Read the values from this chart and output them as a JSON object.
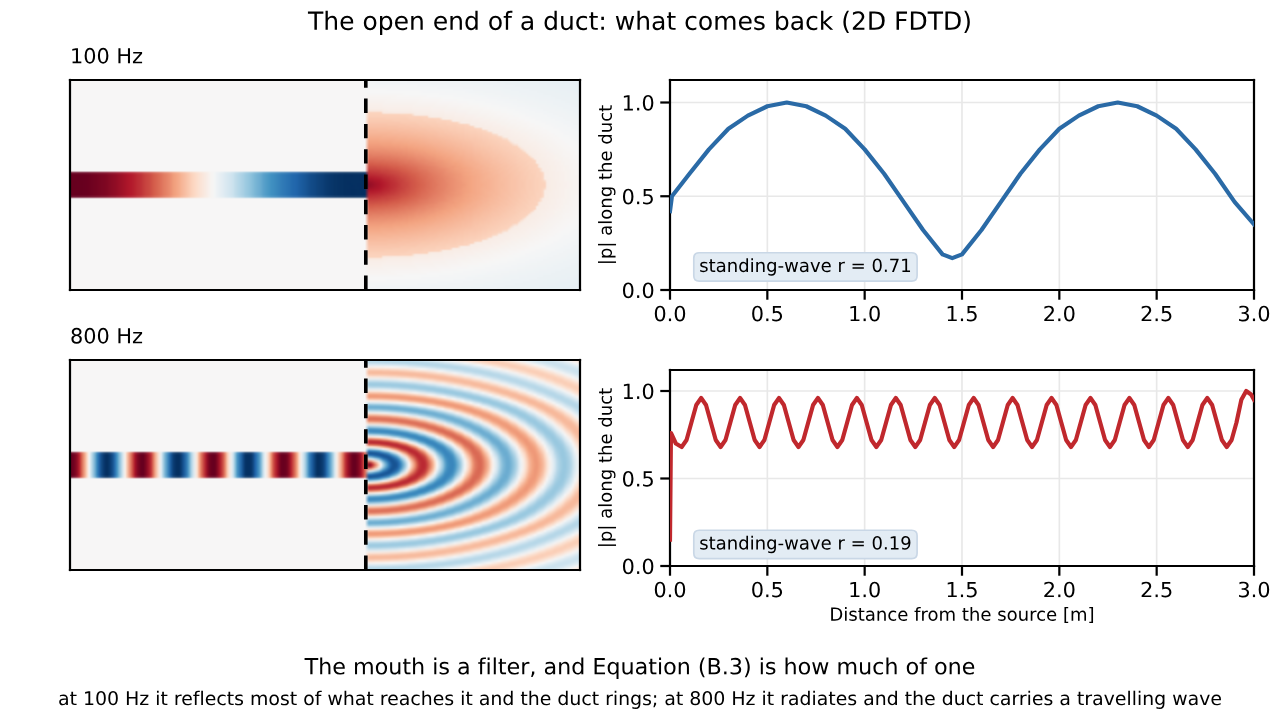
{
  "chart_data": [
    {
      "type": "other",
      "title": "The open end of a duct: what comes back (2D FDTD)",
      "annotations": [
        "The mouth is a filter, and Equation (B.3) is how much of one",
        "at 100 Hz it reflects most of what reaches it and the duct rings; at 800 Hz it radiates and the duct carries a travelling wave"
      ]
    },
    {
      "type": "other",
      "title": "100 Hz"
    },
    {
      "type": "line",
      "ylabel": "|p| along the duct",
      "grid": true,
      "annotations": [
        "standing-wave r = 0.71"
      ],
      "xlim": [
        0,
        3
      ],
      "ylim": [
        0,
        1.12
      ],
      "xticks": [
        {
          "value": 0,
          "label": "0.0"
        },
        {
          "value": 0.5,
          "label": "0.5"
        },
        {
          "value": 1,
          "label": "1.0"
        },
        {
          "value": 1.5,
          "label": "1.5"
        },
        {
          "value": 2,
          "label": "2.0"
        },
        {
          "value": 2.5,
          "label": "2.5"
        },
        {
          "value": 3,
          "label": "3.0"
        }
      ],
      "yticks": [
        {
          "value": 0,
          "label": "0.0"
        },
        {
          "value": 0.5,
          "label": "0.5"
        },
        {
          "value": 1,
          "label": "1.0"
        }
      ],
      "series": [
        {
          "color": "#2a6aa6",
          "x": [
            0,
            0.01,
            0.1,
            0.2,
            0.3,
            0.4,
            0.5,
            0.6,
            0.7,
            0.8,
            0.9,
            1.0,
            1.1,
            1.2,
            1.3,
            1.4,
            1.45,
            1.5,
            1.6,
            1.7,
            1.8,
            1.9,
            2.0,
            2.1,
            2.2,
            2.3,
            2.4,
            2.5,
            2.6,
            2.7,
            2.8,
            2.9,
            3.0
          ],
          "values": [
            0.42,
            0.5,
            0.62,
            0.75,
            0.86,
            0.93,
            0.98,
            1.0,
            0.98,
            0.93,
            0.86,
            0.75,
            0.62,
            0.47,
            0.32,
            0.19,
            0.17,
            0.19,
            0.32,
            0.47,
            0.62,
            0.75,
            0.86,
            0.93,
            0.98,
            1.0,
            0.98,
            0.93,
            0.86,
            0.75,
            0.62,
            0.47,
            0.35
          ]
        }
      ]
    },
    {
      "type": "other",
      "title": "800 Hz"
    },
    {
      "type": "line",
      "ylabel": "|p| along the duct",
      "xlabel": "Distance from the source [m]",
      "grid": true,
      "annotations": [
        "standing-wave r = 0.19"
      ],
      "xlim": [
        0,
        3
      ],
      "ylim": [
        0,
        1.12
      ],
      "xticks": [
        {
          "value": 0,
          "label": "0.0"
        },
        {
          "value": 0.5,
          "label": "0.5"
        },
        {
          "value": 1,
          "label": "1.0"
        },
        {
          "value": 1.5,
          "label": "1.5"
        },
        {
          "value": 2,
          "label": "2.0"
        },
        {
          "value": 2.5,
          "label": "2.5"
        },
        {
          "value": 3,
          "label": "3.0"
        }
      ],
      "yticks": [
        {
          "value": 0,
          "label": "0.0"
        },
        {
          "value": 0.5,
          "label": "0.5"
        },
        {
          "value": 1,
          "label": "1.0"
        }
      ],
      "series": [
        {
          "color": "#c0282d",
          "x": [
            0,
            0.005,
            0.03,
            0.06,
            0.085,
            0.11,
            0.135,
            0.16,
            0.185,
            0.21,
            0.235,
            0.26,
            0.285,
            0.31,
            0.335,
            0.36,
            0.385,
            0.41,
            0.435,
            0.46,
            0.485,
            0.51,
            0.535,
            0.56,
            0.585,
            0.61,
            0.635,
            0.66,
            0.685,
            0.71,
            0.735,
            0.76,
            0.785,
            0.81,
            0.835,
            0.86,
            0.885,
            0.91,
            0.935,
            0.96,
            0.985,
            1.01,
            1.035,
            1.06,
            1.085,
            1.11,
            1.135,
            1.16,
            1.185,
            1.21,
            1.235,
            1.26,
            1.285,
            1.31,
            1.335,
            1.36,
            1.385,
            1.41,
            1.435,
            1.46,
            1.485,
            1.51,
            1.535,
            1.56,
            1.585,
            1.61,
            1.635,
            1.66,
            1.685,
            1.71,
            1.735,
            1.76,
            1.785,
            1.81,
            1.835,
            1.86,
            1.885,
            1.91,
            1.935,
            1.96,
            1.985,
            2.01,
            2.035,
            2.06,
            2.085,
            2.11,
            2.135,
            2.16,
            2.185,
            2.21,
            2.235,
            2.26,
            2.285,
            2.31,
            2.335,
            2.36,
            2.385,
            2.41,
            2.435,
            2.46,
            2.485,
            2.51,
            2.535,
            2.56,
            2.585,
            2.61,
            2.635,
            2.66,
            2.685,
            2.71,
            2.735,
            2.76,
            2.785,
            2.81,
            2.835,
            2.86,
            2.885,
            2.91,
            2.935,
            2.96,
            2.985,
            3.0
          ],
          "values": [
            0.15,
            0.76,
            0.7,
            0.68,
            0.72,
            0.82,
            0.92,
            0.96,
            0.92,
            0.82,
            0.72,
            0.68,
            0.72,
            0.82,
            0.92,
            0.96,
            0.92,
            0.82,
            0.72,
            0.68,
            0.72,
            0.82,
            0.92,
            0.96,
            0.92,
            0.82,
            0.72,
            0.68,
            0.72,
            0.82,
            0.92,
            0.96,
            0.92,
            0.82,
            0.72,
            0.68,
            0.72,
            0.82,
            0.92,
            0.96,
            0.92,
            0.82,
            0.72,
            0.68,
            0.72,
            0.82,
            0.92,
            0.96,
            0.92,
            0.82,
            0.72,
            0.68,
            0.72,
            0.82,
            0.92,
            0.96,
            0.92,
            0.82,
            0.72,
            0.68,
            0.72,
            0.82,
            0.92,
            0.96,
            0.92,
            0.82,
            0.72,
            0.68,
            0.72,
            0.82,
            0.92,
            0.96,
            0.92,
            0.82,
            0.72,
            0.68,
            0.72,
            0.82,
            0.92,
            0.96,
            0.92,
            0.82,
            0.72,
            0.68,
            0.72,
            0.82,
            0.92,
            0.96,
            0.92,
            0.82,
            0.72,
            0.68,
            0.72,
            0.82,
            0.92,
            0.96,
            0.92,
            0.82,
            0.72,
            0.68,
            0.72,
            0.82,
            0.92,
            0.96,
            0.92,
            0.82,
            0.72,
            0.68,
            0.72,
            0.82,
            0.92,
            0.96,
            0.92,
            0.82,
            0.72,
            0.68,
            0.72,
            0.82,
            0.95,
            1.0,
            0.98,
            0.95
          ]
        }
      ]
    }
  ]
}
